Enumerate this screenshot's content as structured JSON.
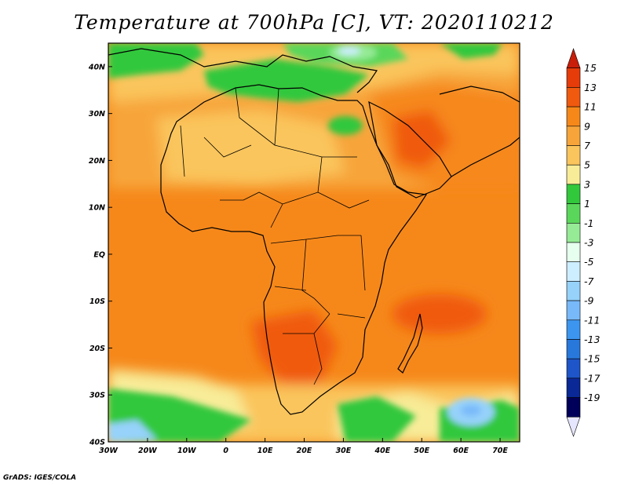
{
  "title": "Temperature at 700hPa [C], VT: 2020110212",
  "footer": "GrADS: IGES/COLA",
  "chart_data": {
    "type": "heatmap",
    "title": "Temperature at 700hPa [C], VT: 2020110212",
    "variable_unit": "C",
    "x_range_deg": [
      -30,
      75
    ],
    "y_range_deg": [
      -40,
      45
    ],
    "x_ticks": [
      "30W",
      "20W",
      "10W",
      "0",
      "10E",
      "20E",
      "30E",
      "40E",
      "50E",
      "60E",
      "70E"
    ],
    "y_ticks": [
      "40N",
      "30N",
      "20N",
      "10N",
      "EQ",
      "10S",
      "20S",
      "30S",
      "40S"
    ],
    "colorbar": {
      "labels": [
        "15",
        "13",
        "11",
        "9",
        "7",
        "5",
        "3",
        "1",
        "-1",
        "-3",
        "-5",
        "-7",
        "-9",
        "-11",
        "-13",
        "-15",
        "-17",
        "-19"
      ],
      "colors": [
        "#c81e0a",
        "#e63c0a",
        "#f05a0f",
        "#f6881a",
        "#f7a53a",
        "#fac55c",
        "#f8ec98",
        "#32c83c",
        "#5ad75a",
        "#96eb96",
        "#e6ffee",
        "#cdeeff",
        "#96d2fa",
        "#78b9fa",
        "#3c96f0",
        "#2878dc",
        "#1e55c8",
        "#0a2896",
        "#00005a",
        "#e6e6ff"
      ]
    }
  }
}
